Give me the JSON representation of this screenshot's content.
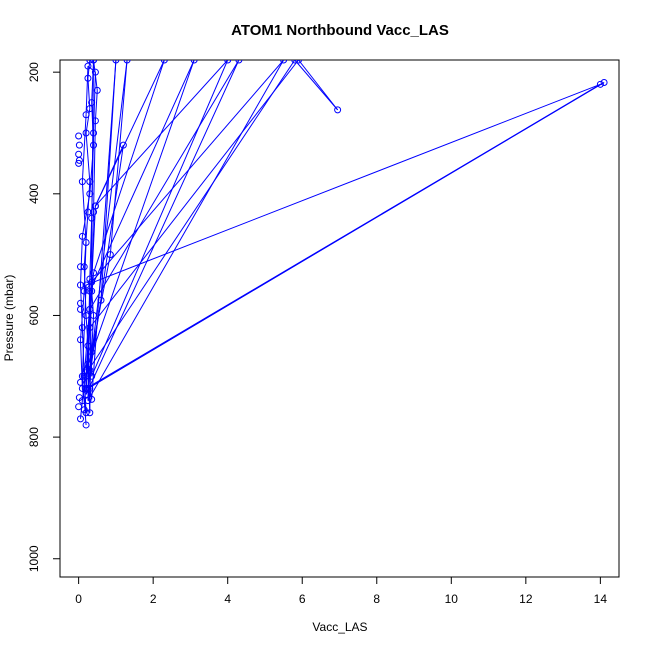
{
  "chart_data": {
    "type": "line",
    "title": "ATOM1 Northbound Vacc_LAS",
    "xlabel": "Vacc_LAS",
    "ylabel": "Pressure (mbar)",
    "xlim": [
      -0.5,
      14.5
    ],
    "ylim": [
      1030,
      180
    ],
    "y_reversed": true,
    "x_ticks": [
      0,
      2,
      4,
      6,
      8,
      10,
      12,
      14
    ],
    "y_ticks": [
      200,
      400,
      600,
      800,
      1000
    ],
    "grid": false,
    "legend": "none",
    "series": [
      {
        "color": "#0000ff",
        "marker": "open-circle",
        "points": [
          {
            "x": 0.05,
            "y": 770
          },
          {
            "x": 0.1,
            "y": 740
          },
          {
            "x": 0.2,
            "y": 700
          },
          {
            "x": 0.25,
            "y": 650
          },
          {
            "x": 0.2,
            "y": 600
          },
          {
            "x": 0.15,
            "y": 520
          },
          {
            "x": 0.25,
            "y": 430
          },
          {
            "x": 0.3,
            "y": 380
          },
          {
            "x": 0.2,
            "y": 300
          },
          {
            "x": 0.3,
            "y": 260
          },
          {
            "x": 0.25,
            "y": 210
          },
          {
            "x": 0.3,
            "y": 180
          },
          {
            "x": 0.4,
            "y": 180
          },
          {
            "x": 0.35,
            "y": 250
          },
          {
            "x": 0.4,
            "y": 320
          },
          {
            "x": 0.3,
            "y": 400
          },
          {
            "x": 0.1,
            "y": 470
          },
          {
            "x": 0.05,
            "y": 550
          },
          {
            "x": 0.1,
            "y": 620
          },
          {
            "x": 0.15,
            "y": 700
          },
          {
            "x": 0.2,
            "y": 760
          },
          {
            "x": 0.1,
            "y": 720
          },
          {
            "x": 0.05,
            "y": 640
          },
          {
            "x": 0.15,
            "y": 560
          },
          {
            "x": 0.2,
            "y": 480
          },
          {
            "x": 0.1,
            "y": 380
          },
          {
            "x": 0.2,
            "y": 270
          },
          {
            "x": 0.25,
            "y": 190
          },
          {
            "x": 0.45,
            "y": 200
          },
          {
            "x": 0.4,
            "y": 300
          },
          {
            "x": 0.35,
            "y": 440
          },
          {
            "x": 0.3,
            "y": 540
          },
          {
            "x": 0.25,
            "y": 680
          },
          {
            "x": 0.3,
            "y": 760
          },
          {
            "x": 0.4,
            "y": 180
          },
          {
            "x": 0.5,
            "y": 230
          },
          {
            "x": 0.45,
            "y": 280
          },
          {
            "x": 0.4,
            "y": 430
          },
          {
            "x": 0.35,
            "y": 560
          },
          {
            "x": 0.4,
            "y": 600
          },
          {
            "x": 0.3,
            "y": 720
          },
          {
            "x": 0.35,
            "y": 738
          },
          {
            "x": 1.0,
            "y": 180
          },
          {
            "x": 0.6,
            "y": 575
          },
          {
            "x": 0.3,
            "y": 690
          },
          {
            "x": 1.3,
            "y": 180
          },
          {
            "x": 0.85,
            "y": 500
          },
          {
            "x": 0.35,
            "y": 660
          },
          {
            "x": 0.25,
            "y": 720
          },
          {
            "x": 1.2,
            "y": 320
          },
          {
            "x": 0.45,
            "y": 420
          },
          {
            "x": 2.3,
            "y": 180
          },
          {
            "x": 0.4,
            "y": 530
          },
          {
            "x": 0.2,
            "y": 690
          },
          {
            "x": 3.1,
            "y": 180
          },
          {
            "x": 0.3,
            "y": 560
          },
          {
            "x": 0.35,
            "y": 700
          },
          {
            "x": 4.0,
            "y": 180
          },
          {
            "x": 0.45,
            "y": 420
          },
          {
            "x": 0.2,
            "y": 730
          },
          {
            "x": 4.3,
            "y": 180
          },
          {
            "x": 0.3,
            "y": 590
          },
          {
            "x": 0.25,
            "y": 740
          },
          {
            "x": 5.5,
            "y": 180
          },
          {
            "x": 0.35,
            "y": 545
          },
          {
            "x": 0.15,
            "y": 700
          },
          {
            "x": 5.8,
            "y": 180
          },
          {
            "x": 6.95,
            "y": 262
          },
          {
            "x": 5.9,
            "y": 180
          },
          {
            "x": 0.3,
            "y": 620
          },
          {
            "x": 0.2,
            "y": 720
          },
          {
            "x": 14.1,
            "y": 217
          },
          {
            "x": 0.25,
            "y": 720
          },
          {
            "x": 14.0,
            "y": 220
          },
          {
            "x": 0.2,
            "y": 550
          },
          {
            "x": 0.1,
            "y": 700
          },
          {
            "x": 0.2,
            "y": 780
          }
        ]
      }
    ],
    "scatter_points": [
      {
        "x": 0.0,
        "y": 305
      },
      {
        "x": 0.02,
        "y": 320
      },
      {
        "x": 0.0,
        "y": 335
      },
      {
        "x": 0.02,
        "y": 345
      },
      {
        "x": 0.0,
        "y": 350
      },
      {
        "x": 0.05,
        "y": 520
      },
      {
        "x": 0.05,
        "y": 580
      },
      {
        "x": 0.05,
        "y": 590
      },
      {
        "x": 0.0,
        "y": 750
      },
      {
        "x": 0.05,
        "y": 710
      },
      {
        "x": 0.02,
        "y": 735
      },
      {
        "x": 0.15,
        "y": 755
      }
    ]
  }
}
